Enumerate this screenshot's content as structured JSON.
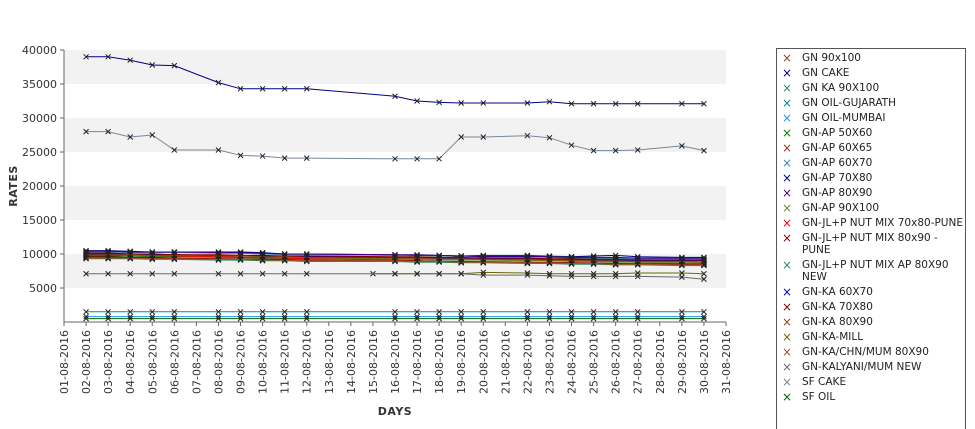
{
  "chart_data": {
    "type": "line",
    "xlabel": "DAYS",
    "ylabel": "RATES",
    "ylim": [
      0,
      40000
    ],
    "yticks": [
      5000,
      10000,
      15000,
      20000,
      25000,
      30000,
      35000,
      40000
    ],
    "x": [
      "01-08-2016",
      "02-08-2016",
      "03-08-2016",
      "04-08-2016",
      "05-08-2016",
      "06-08-2016",
      "07-08-2016",
      "08-08-2016",
      "09-08-2016",
      "10-08-2016",
      "11-08-2016",
      "12-08-2016",
      "13-08-2016",
      "14-08-2016",
      "15-08-2016",
      "16-08-2016",
      "17-08-2016",
      "18-08-2016",
      "19-08-2016",
      "20-08-2016",
      "21-08-2016",
      "22-08-2016",
      "23-08-2016",
      "24-08-2016",
      "25-08-2016",
      "26-08-2016",
      "27-08-2016",
      "28-08-2016",
      "29-08-2016",
      "30-08-2016",
      "31-08-2016"
    ],
    "grid": "alternating horizontal bands",
    "legend_position": "right",
    "series": [
      {
        "name": "GN 90x100",
        "color": "#8B4513",
        "values": [
          null,
          10200,
          10200,
          10000,
          10000,
          9900,
          null,
          9800,
          9800,
          9700,
          9600,
          9600,
          null,
          null,
          null,
          9500,
          9400,
          9300,
          9200,
          9200,
          null,
          9100,
          9000,
          9000,
          8900,
          8900,
          8800,
          null,
          8700,
          8600,
          null
        ]
      },
      {
        "name": "GN CAKE",
        "color": "#000080",
        "values": [
          null,
          39000,
          39000,
          38500,
          37800,
          37700,
          null,
          35200,
          34300,
          34300,
          34300,
          34300,
          null,
          null,
          null,
          33200,
          32500,
          32300,
          32200,
          32200,
          null,
          32200,
          32400,
          32100,
          32100,
          32100,
          32100,
          null,
          32100,
          32100,
          null
        ]
      },
      {
        "name": "GN KA 90X100",
        "color": "#2E8B57",
        "values": [
          null,
          9800,
          9800,
          9800,
          9800,
          9700,
          null,
          9600,
          9500,
          9400,
          9300,
          9300,
          null,
          null,
          null,
          9200,
          9200,
          9100,
          9100,
          9600,
          null,
          9700,
          9500,
          9400,
          9300,
          9300,
          9200,
          null,
          9200,
          9100,
          null
        ]
      },
      {
        "name": "GN OIL-GUJARATH",
        "color": "#008B8B",
        "values": [
          null,
          1500,
          1500,
          1500,
          1500,
          1500,
          null,
          1500,
          1500,
          1500,
          1500,
          1500,
          null,
          null,
          null,
          1500,
          1500,
          1500,
          1500,
          1500,
          null,
          1500,
          1500,
          1500,
          1500,
          1500,
          1500,
          null,
          1500,
          1500,
          null
        ]
      },
      {
        "name": "GN OIL-MUMBAI",
        "color": "#1E90FF",
        "values": [
          null,
          800,
          800,
          800,
          800,
          800,
          null,
          800,
          800,
          800,
          800,
          800,
          null,
          null,
          null,
          800,
          800,
          800,
          800,
          800,
          null,
          800,
          800,
          800,
          800,
          800,
          800,
          null,
          800,
          800,
          null
        ]
      },
      {
        "name": "GN-AP 50X60",
        "color": "#008000",
        "values": [
          null,
          9700,
          9700,
          9700,
          9600,
          9600,
          null,
          9500,
          9500,
          9400,
          9400,
          9400,
          null,
          null,
          null,
          9300,
          9200,
          9200,
          9700,
          9800,
          null,
          9800,
          9700,
          9600,
          9500,
          9400,
          9300,
          null,
          9300,
          9200,
          null
        ]
      },
      {
        "name": "GN-AP 60X65",
        "color": "#A52A2A",
        "values": [
          null,
          9500,
          9500,
          9400,
          9400,
          9300,
          null,
          9300,
          9200,
          9200,
          9100,
          9100,
          null,
          null,
          null,
          9000,
          9000,
          8900,
          8900,
          8900,
          null,
          8800,
          8800,
          8700,
          8700,
          8600,
          8600,
          null,
          8600,
          8500,
          null
        ]
      },
      {
        "name": "GN-AP 60X70",
        "color": "#4682B4",
        "values": [
          null,
          10300,
          10300,
          10200,
          10200,
          10200,
          null,
          10100,
          10100,
          10000,
          9900,
          9900,
          null,
          null,
          null,
          9800,
          9800,
          9700,
          9700,
          9600,
          null,
          9600,
          9500,
          9500,
          9400,
          9400,
          9300,
          null,
          9300,
          9200,
          null
        ]
      },
      {
        "name": "GN-AP 70X80",
        "color": "#00008B",
        "values": [
          null,
          10500,
          10500,
          10400,
          10300,
          10300,
          null,
          10300,
          10300,
          10200,
          10000,
          10000,
          null,
          null,
          null,
          9900,
          9900,
          9800,
          9700,
          9700,
          null,
          9700,
          9600,
          9600,
          9700,
          9800,
          9600,
          null,
          9500,
          9500,
          null
        ]
      },
      {
        "name": "GN-AP 80X90",
        "color": "#4B0082",
        "values": [
          null,
          10400,
          10400,
          10300,
          10300,
          10300,
          null,
          10200,
          10200,
          10100,
          10000,
          10000,
          null,
          null,
          null,
          9900,
          9800,
          9800,
          9700,
          9600,
          null,
          9600,
          9600,
          9500,
          9500,
          9500,
          9400,
          null,
          9400,
          9400,
          null
        ]
      },
      {
        "name": "GN-AP 90X100",
        "color": "#6B8E23",
        "values": [
          null,
          9900,
          9900,
          9800,
          9700,
          9700,
          null,
          9600,
          9500,
          9500,
          9400,
          9400,
          null,
          null,
          null,
          9300,
          9200,
          9200,
          9100,
          9100,
          null,
          9000,
          9000,
          8900,
          8900,
          8800,
          8800,
          null,
          8700,
          8700,
          null
        ]
      },
      {
        "name": "GN-JL+P NUT MIX 70x80-PUNE",
        "color": "#FF0000",
        "values": [
          null,
          9800,
          9800,
          9900,
          9800,
          9700,
          null,
          9600,
          9500,
          9500,
          9400,
          9300,
          null,
          null,
          null,
          9100,
          9000,
          8900,
          8800,
          8800,
          null,
          8700,
          8700,
          8600,
          8600,
          8500,
          8500,
          null,
          8500,
          8500,
          null
        ]
      },
      {
        "name": "GN-JL+P NUT MIX 80x90 - PUNE",
        "color": "#8B0000",
        "values": [
          null,
          9600,
          9600,
          9500,
          9500,
          9400,
          null,
          9300,
          9300,
          9200,
          9200,
          9100,
          null,
          null,
          null,
          9000,
          9000,
          8900,
          8900,
          8800,
          null,
          8800,
          8700,
          8700,
          8600,
          8600,
          8500,
          null,
          8500,
          8400,
          null
        ]
      },
      {
        "name": "GN-JL+P NUT MIX AP 80X90 NEW",
        "color": "#2E8B57",
        "values": [
          null,
          9300,
          9300,
          9300,
          9200,
          9200,
          null,
          9100,
          9100,
          9000,
          9000,
          8900,
          null,
          null,
          null,
          8900,
          8800,
          8800,
          8700,
          8700,
          null,
          8600,
          8600,
          8500,
          8500,
          8400,
          8400,
          null,
          8300,
          8300,
          null
        ]
      },
      {
        "name": "GN-KA 60X70",
        "color": "#0000CD",
        "values": [
          null,
          10000,
          10000,
          10000,
          9900,
          9900,
          null,
          9800,
          9800,
          9700,
          9700,
          9600,
          null,
          null,
          null,
          9500,
          9500,
          9400,
          9400,
          9300,
          null,
          9300,
          9200,
          9200,
          9100,
          9100,
          9000,
          null,
          9000,
          9000,
          null
        ]
      },
      {
        "name": "GN-KA 70X80",
        "color": "#800000",
        "values": [
          null,
          10100,
          10100,
          10000,
          10000,
          9900,
          null,
          9900,
          9800,
          9800,
          9700,
          9700,
          null,
          null,
          null,
          9600,
          9600,
          9500,
          9500,
          9400,
          null,
          9400,
          9300,
          9300,
          9200,
          9200,
          9100,
          null,
          9100,
          9100,
          null
        ]
      },
      {
        "name": "GN-KA 80X90",
        "color": "#8B4513",
        "values": [
          null,
          9900,
          9900,
          9900,
          9800,
          9800,
          null,
          9700,
          9700,
          9600,
          9600,
          9500,
          null,
          null,
          null,
          9400,
          9400,
          9300,
          9300,
          9200,
          null,
          9200,
          9100,
          9100,
          9000,
          9000,
          8900,
          null,
          8900,
          8800,
          null
        ]
      },
      {
        "name": "GN-KA-MILL",
        "color": "#6B6B00",
        "values": [
          null,
          null,
          null,
          null,
          null,
          null,
          null,
          null,
          null,
          null,
          null,
          null,
          null,
          null,
          7100,
          7100,
          7100,
          7100,
          7100,
          7300,
          null,
          7200,
          7100,
          7100,
          7100,
          7100,
          7200,
          null,
          7200,
          7100,
          null
        ]
      },
      {
        "name": "GN-KA/CHN/MUM 80X90",
        "color": "#A0522D",
        "values": [
          null,
          9400,
          9400,
          9400,
          9300,
          9300,
          null,
          9200,
          9200,
          9100,
          9100,
          9000,
          null,
          null,
          null,
          9000,
          8900,
          8900,
          8800,
          8800,
          null,
          8700,
          8700,
          8600,
          8600,
          8500,
          8500,
          null,
          8400,
          8400,
          null
        ]
      },
      {
        "name": "GN-KALYANI/MUM NEW",
        "color": "#696969",
        "values": [
          null,
          7100,
          7100,
          7100,
          7100,
          7100,
          null,
          7100,
          7100,
          7100,
          7100,
          7100,
          null,
          null,
          null,
          7100,
          7100,
          7100,
          7100,
          6900,
          null,
          6900,
          6800,
          6700,
          6700,
          6700,
          6700,
          null,
          6600,
          6300,
          null
        ]
      },
      {
        "name": "SF CAKE",
        "color": "#778899",
        "values": [
          null,
          28000,
          28000,
          27200,
          27500,
          25300,
          null,
          25300,
          24500,
          24400,
          24100,
          24100,
          null,
          null,
          null,
          24000,
          24000,
          24000,
          27200,
          27200,
          null,
          27400,
          27100,
          26000,
          25200,
          25200,
          25300,
          null,
          25900,
          25200,
          null
        ]
      },
      {
        "name": "SF OIL",
        "color": "#006400",
        "values": [
          null,
          500,
          500,
          500,
          500,
          500,
          null,
          500,
          500,
          500,
          500,
          500,
          null,
          null,
          null,
          500,
          500,
          500,
          500,
          500,
          null,
          500,
          500,
          500,
          500,
          500,
          500,
          null,
          500,
          500,
          null
        ]
      }
    ]
  }
}
